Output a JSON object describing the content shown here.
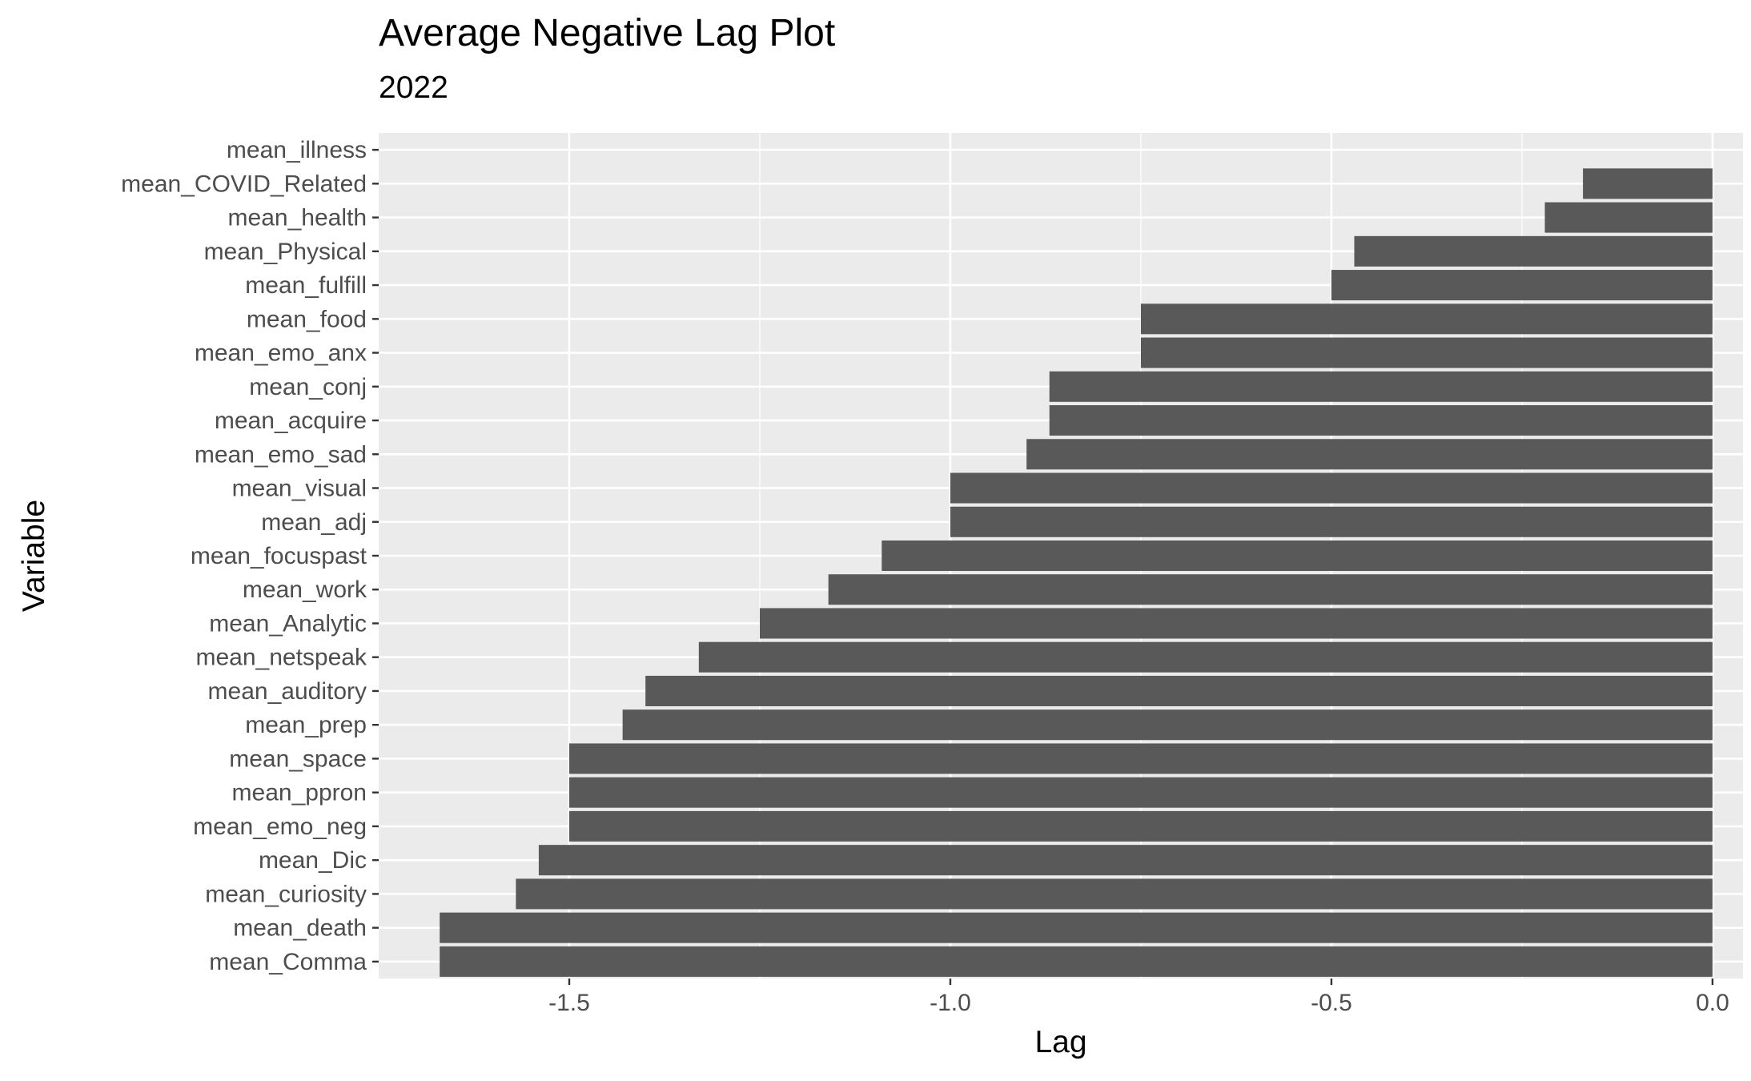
{
  "chart_data": {
    "type": "bar",
    "orientation": "horizontal",
    "title": "Average Negative Lag Plot",
    "subtitle": "2022",
    "xlabel": "Lag",
    "ylabel": "Variable",
    "xlim": [
      -1.75,
      0.04
    ],
    "xticks": [
      -1.5,
      -1.0,
      -0.5,
      0.0
    ],
    "xtick_labels": [
      "-1.5",
      "-1.0",
      "-0.5",
      "0.0"
    ],
    "grid": true,
    "bar_color": "#595959",
    "panel_background": "#ebebeb",
    "categories": [
      "mean_illness",
      "mean_COVID_Related",
      "mean_health",
      "mean_Physical",
      "mean_fulfill",
      "mean_food",
      "mean_emo_anx",
      "mean_conj",
      "mean_acquire",
      "mean_emo_sad",
      "mean_visual",
      "mean_adj",
      "mean_focuspast",
      "mean_work",
      "mean_Analytic",
      "mean_netspeak",
      "mean_auditory",
      "mean_prep",
      "mean_space",
      "mean_ppron",
      "mean_emo_neg",
      "mean_Dic",
      "mean_curiosity",
      "mean_death",
      "mean_Comma"
    ],
    "values": [
      0,
      -0.17,
      -0.22,
      -0.47,
      -0.5,
      -0.75,
      -0.75,
      -0.87,
      -0.87,
      -0.9,
      -1.0,
      -1.0,
      -1.09,
      -1.16,
      -1.25,
      -1.33,
      -1.4,
      -1.43,
      -1.5,
      -1.5,
      -1.5,
      -1.54,
      -1.57,
      -1.67,
      -1.67
    ]
  }
}
